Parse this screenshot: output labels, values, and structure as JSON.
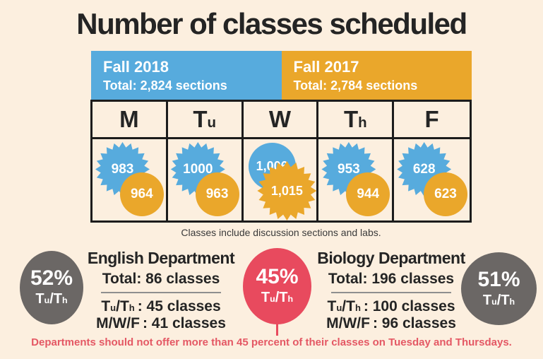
{
  "title": "Number of classes scheduled",
  "header": {
    "fall2018": {
      "label": "Fall 2018",
      "total": "Total: 2,824 sections"
    },
    "fall2017": {
      "label": "Fall 2017",
      "total": "Total: 2,784 sections"
    }
  },
  "table": {
    "note": "Classes include discussion sections and labs.",
    "columns": [
      {
        "day": "M",
        "fall2018": "983",
        "fall2017": "964"
      },
      {
        "day": "Tu",
        "fall2018": "1000",
        "fall2017": "963"
      },
      {
        "day": "W",
        "fall2018": "1,006",
        "fall2017": "1,015"
      },
      {
        "day": "Th",
        "fall2018": "953",
        "fall2017": "944"
      },
      {
        "day": "F",
        "fall2018": "628",
        "fall2017": "623"
      }
    ]
  },
  "departments": {
    "english": {
      "name": "English Department",
      "total": "Total: 86 classes",
      "percent": "52%",
      "percent_label": "Tu/Th",
      "rows": [
        {
          "label": "Tu/Th",
          "value": ": 45 classes"
        },
        {
          "label": "M/W/F",
          "value": ": 41 classes"
        }
      ]
    },
    "target": {
      "percent": "45%",
      "percent_label": "Tu/Th"
    },
    "biology": {
      "name": "Biology Department",
      "total": "Total: 196 classes",
      "percent": "51%",
      "percent_label": "Tu/Th",
      "rows": [
        {
          "label": "Tu/Th",
          "value": ": 100 classes"
        },
        {
          "label": "M/W/F",
          "value": ": 96 classes"
        }
      ]
    }
  },
  "caption": "Departments should not offer more than 45 percent of their classes on Tuesday and Thursdays.",
  "colors": {
    "background": "#fcefdf",
    "fall2018_blue": "#57abdd",
    "fall2017_orange": "#eaa72b",
    "gray_circle": "#6b6765",
    "red_circle": "#e84a5e",
    "caption_red": "#e45864",
    "text_dark": "#242424"
  },
  "chart_data": {
    "type": "table",
    "title": "Number of classes scheduled",
    "categories": [
      "M",
      "Tu",
      "W",
      "Th",
      "F"
    ],
    "series": [
      {
        "name": "Fall 2018",
        "total_sections": 2824,
        "values": [
          983,
          1000,
          1006,
          953,
          628
        ],
        "color": "#57abdd"
      },
      {
        "name": "Fall 2017",
        "total_sections": 2784,
        "values": [
          964,
          963,
          1015,
          944,
          623
        ],
        "color": "#eaa72b"
      }
    ],
    "note": "Classes include discussion sections and labs.",
    "departments": [
      {
        "name": "English Department",
        "total_classes": 86,
        "tu_th_classes": 45,
        "m_w_f_classes": 41,
        "tu_th_percent": 52
      },
      {
        "name": "Biology Department",
        "total_classes": 196,
        "tu_th_classes": 100,
        "m_w_f_classes": 96,
        "tu_th_percent": 51
      }
    ],
    "recommended_max_tu_th_percent": 45
  }
}
